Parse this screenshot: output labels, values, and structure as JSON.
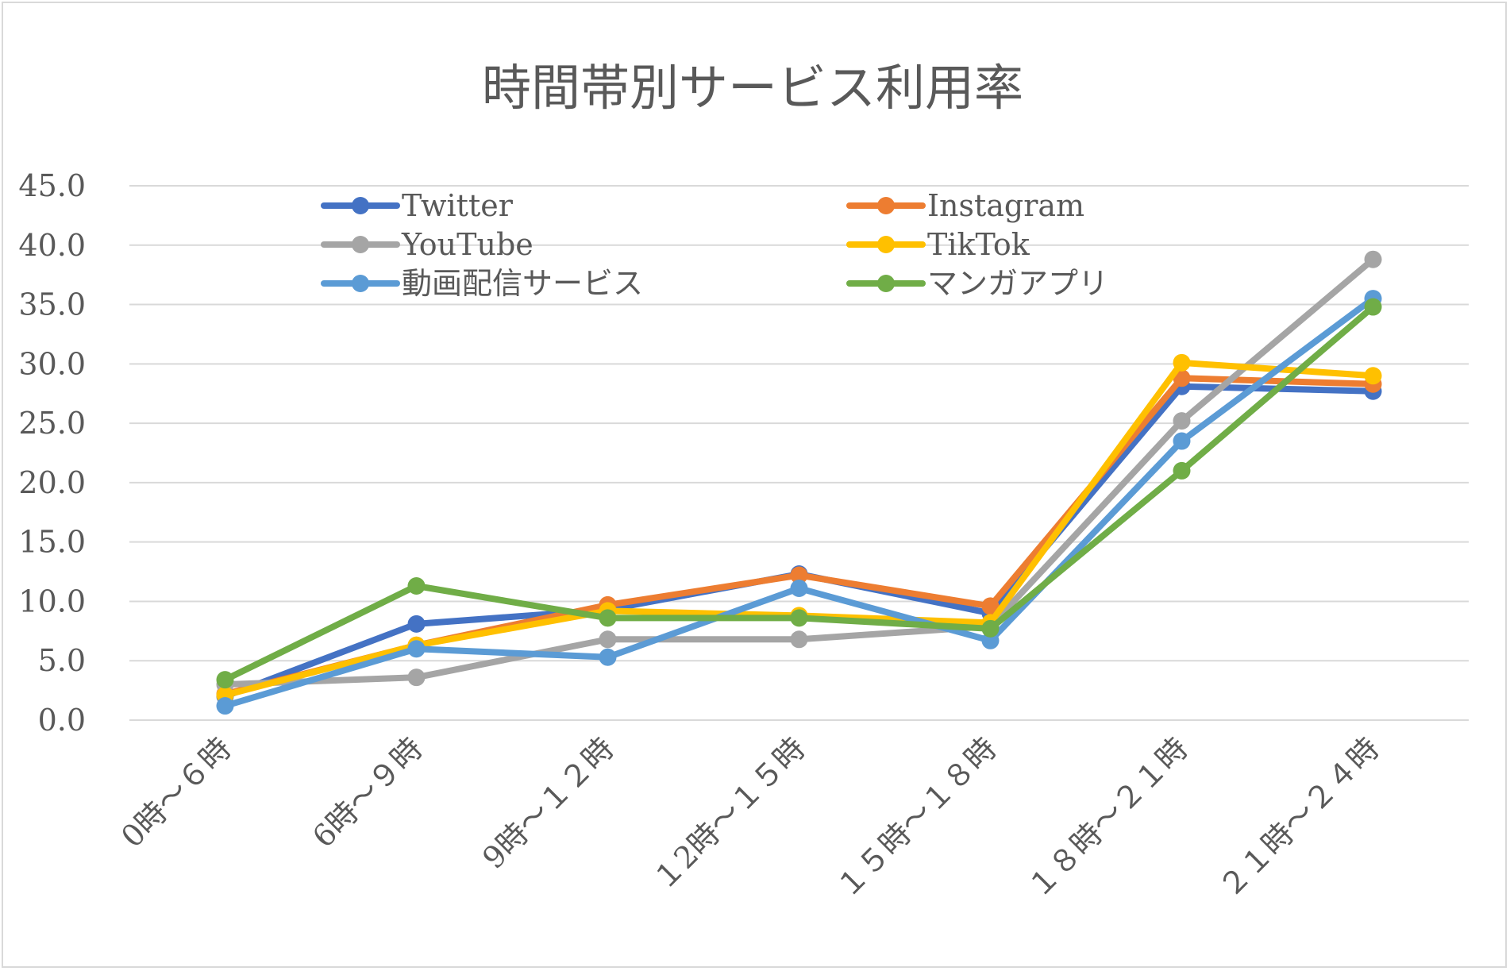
{
  "chart_data": {
    "type": "line",
    "title": "時間帯別サービス利用率",
    "xlabel": "",
    "ylabel": "",
    "ylim": [
      0,
      45
    ],
    "yticks": [
      "0.0",
      "5.0",
      "10.0",
      "15.0",
      "20.0",
      "25.0",
      "30.0",
      "35.0",
      "40.0",
      "45.0"
    ],
    "grid": true,
    "legend_position": "top",
    "categories": [
      "0時～６時",
      "6時～９時",
      "9時～１２時",
      "１2時～１５時",
      "１５時～１８時",
      "１８時～２１時",
      "２１時～２４時"
    ],
    "series": [
      {
        "name": "Twitter",
        "color": "#4472c4",
        "values": [
          2.0,
          8.1,
          9.3,
          12.3,
          9.0,
          28.1,
          27.7
        ]
      },
      {
        "name": "Instagram",
        "color": "#ed7d31",
        "values": [
          2.2,
          6.3,
          9.7,
          12.2,
          9.6,
          28.8,
          28.3
        ]
      },
      {
        "name": "YouTube",
        "color": "#a5a5a5",
        "values": [
          3.0,
          3.6,
          6.8,
          6.8,
          7.9,
          25.2,
          38.8
        ]
      },
      {
        "name": "TikTok",
        "color": "#ffc000",
        "values": [
          2.1,
          6.3,
          9.2,
          8.8,
          8.2,
          30.1,
          29.0
        ]
      },
      {
        "name": "動画配信サービス",
        "color": "#5b9bd5",
        "values": [
          1.2,
          6.0,
          5.3,
          11.1,
          6.7,
          23.5,
          35.5
        ]
      },
      {
        "name": "マンガアプリ",
        "color": "#70ad47",
        "values": [
          3.4,
          11.3,
          8.6,
          8.6,
          7.7,
          21.0,
          34.8
        ]
      }
    ]
  }
}
